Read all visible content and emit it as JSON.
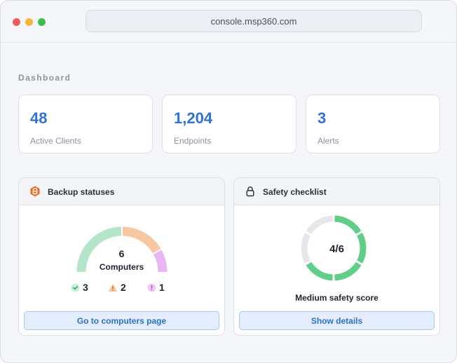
{
  "browser": {
    "url": "console.msp360.com"
  },
  "dashboard": {
    "title": "Dashboard",
    "stats": [
      {
        "value": "48",
        "label": "Active Clients"
      },
      {
        "value": "1,204",
        "label": "Endpoints"
      },
      {
        "value": "3",
        "label": "Alerts"
      }
    ]
  },
  "backup": {
    "title": "Backup statuses",
    "icon": "backup-hexagon-icon",
    "total": "6",
    "total_label": "Computers",
    "statuses": [
      {
        "name": "success",
        "count": 3,
        "color": "#b3e6c8",
        "icon": "check-circle-icon",
        "icon_color": "#45c47b"
      },
      {
        "name": "warning",
        "count": 2,
        "color": "#f8c7a0",
        "icon": "warning-triangle-icon",
        "icon_color": "#f2a35e"
      },
      {
        "name": "failed",
        "count": 1,
        "color": "#e9b5f5",
        "icon": "exclamation-circle-icon",
        "icon_color": "#e08ef0"
      }
    ],
    "success_count": "3",
    "warning_count": "2",
    "failed_count": "1",
    "button_label": "Go to computers page"
  },
  "safety": {
    "title": "Safety checklist",
    "icon": "lock-icon",
    "score_text": "4/6",
    "passed": 4,
    "total": 6,
    "pass_color": "#5fcf87",
    "fail_color": "#e5e7eb",
    "score_label": "Medium safety score",
    "button_label": "Show details"
  },
  "colors": {
    "accent": "#2f73d8",
    "button_bg": "#e3edfb"
  }
}
